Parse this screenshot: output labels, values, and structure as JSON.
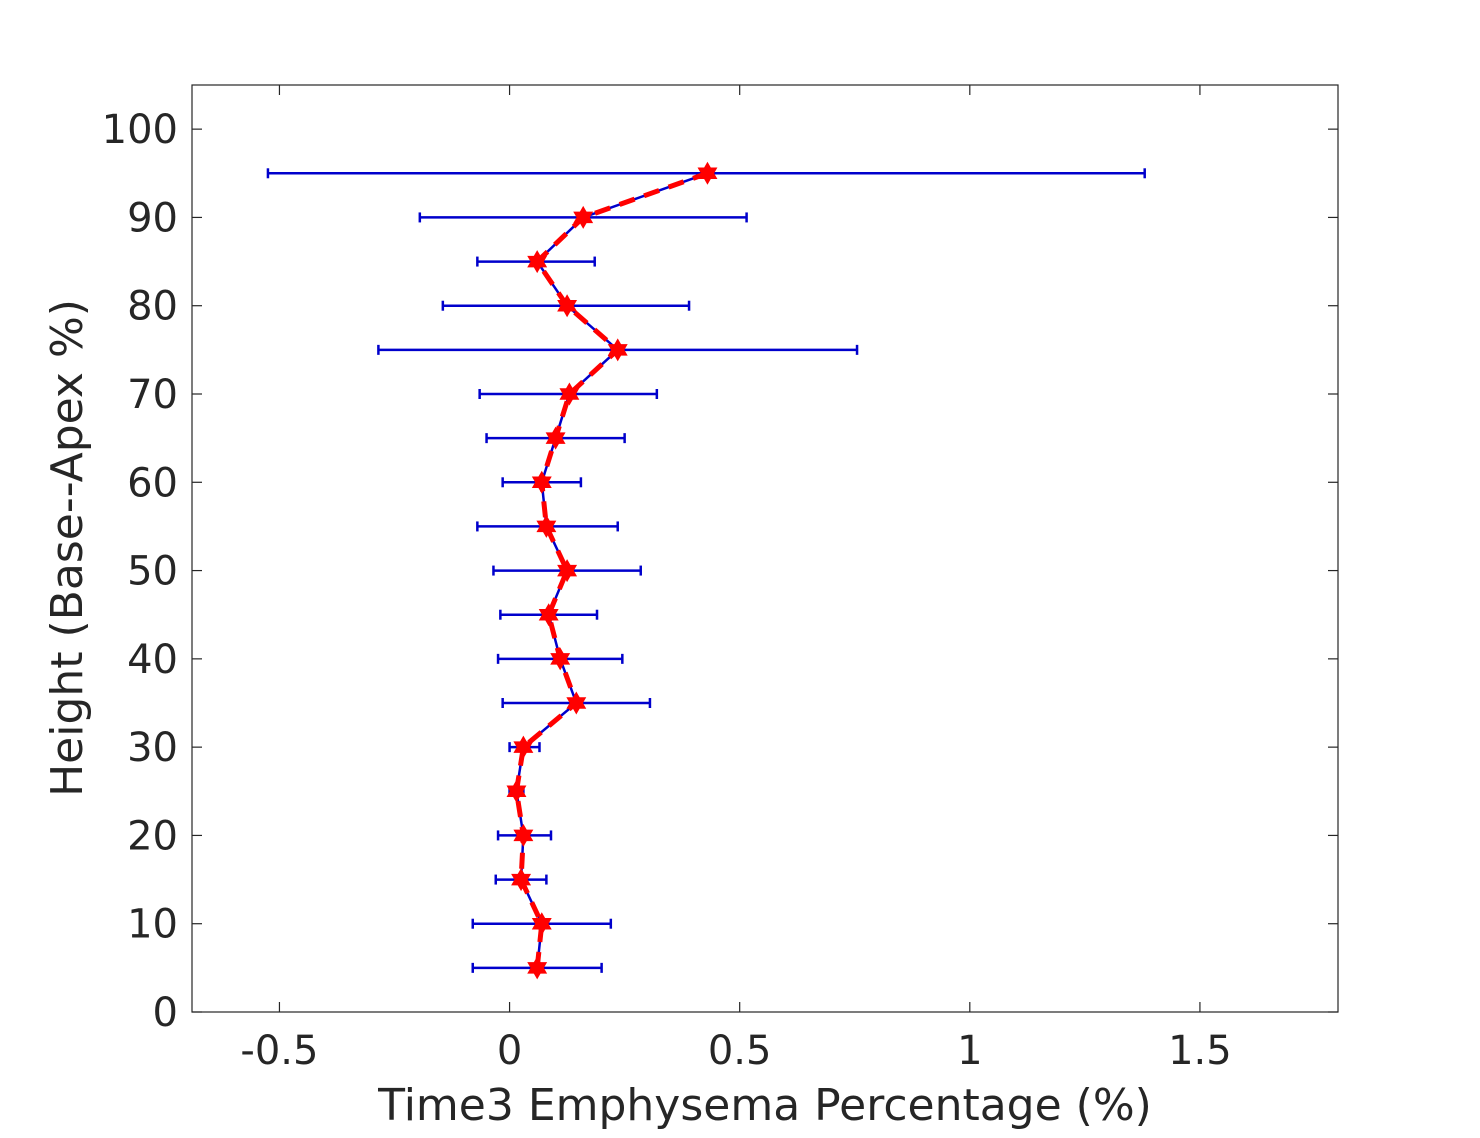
{
  "chart_data": {
    "type": "line",
    "title": "",
    "xlabel": "Time3 Emphysema Percentage (%)",
    "ylabel": "Height (Base--Apex %)",
    "xlim": [
      -0.69,
      1.8
    ],
    "ylim": [
      0,
      105
    ],
    "x_ticks": [
      -0.5,
      0,
      0.5,
      1,
      1.5
    ],
    "x_tick_labels": [
      "-0.5",
      "0",
      "0.5",
      "1",
      "1.5"
    ],
    "y_ticks": [
      0,
      10,
      20,
      30,
      40,
      50,
      60,
      70,
      80,
      90,
      100
    ],
    "y_tick_labels": [
      "0",
      "10",
      "20",
      "30",
      "40",
      "50",
      "60",
      "70",
      "80",
      "90",
      "100"
    ],
    "grid": false,
    "colors": {
      "errorbar": "#0000cc",
      "marker_line": "#ff0000",
      "axis": "#262626"
    },
    "series": [
      {
        "points": [
          {
            "y": 5,
            "x": 0.06,
            "xerr_low": -0.08,
            "xerr_high": 0.2
          },
          {
            "y": 10,
            "x": 0.07,
            "xerr_low": -0.08,
            "xerr_high": 0.22
          },
          {
            "y": 15,
            "x": 0.025,
            "xerr_low": -0.03,
            "xerr_high": 0.08
          },
          {
            "y": 20,
            "x": 0.03,
            "xerr_low": -0.025,
            "xerr_high": 0.09
          },
          {
            "y": 25,
            "x": 0.015,
            "xerr_low": 0.0,
            "xerr_high": 0.03
          },
          {
            "y": 30,
            "x": 0.03,
            "xerr_low": 0.0,
            "xerr_high": 0.065
          },
          {
            "y": 35,
            "x": 0.145,
            "xerr_low": -0.015,
            "xerr_high": 0.305
          },
          {
            "y": 40,
            "x": 0.11,
            "xerr_low": -0.025,
            "xerr_high": 0.245
          },
          {
            "y": 45,
            "x": 0.085,
            "xerr_low": -0.02,
            "xerr_high": 0.19
          },
          {
            "y": 50,
            "x": 0.125,
            "xerr_low": -0.035,
            "xerr_high": 0.285
          },
          {
            "y": 55,
            "x": 0.08,
            "xerr_low": -0.07,
            "xerr_high": 0.235
          },
          {
            "y": 60,
            "x": 0.07,
            "xerr_low": -0.015,
            "xerr_high": 0.155
          },
          {
            "y": 65,
            "x": 0.1,
            "xerr_low": -0.05,
            "xerr_high": 0.25
          },
          {
            "y": 70,
            "x": 0.13,
            "xerr_low": -0.065,
            "xerr_high": 0.32
          },
          {
            "y": 75,
            "x": 0.235,
            "xerr_low": -0.285,
            "xerr_high": 0.755
          },
          {
            "y": 80,
            "x": 0.125,
            "xerr_low": -0.145,
            "xerr_high": 0.39
          },
          {
            "y": 85,
            "x": 0.06,
            "xerr_low": -0.07,
            "xerr_high": 0.185
          },
          {
            "y": 90,
            "x": 0.16,
            "xerr_low": -0.195,
            "xerr_high": 0.515
          },
          {
            "y": 95,
            "x": 0.43,
            "xerr_low": -0.525,
            "xerr_high": 1.38
          }
        ]
      }
    ]
  }
}
